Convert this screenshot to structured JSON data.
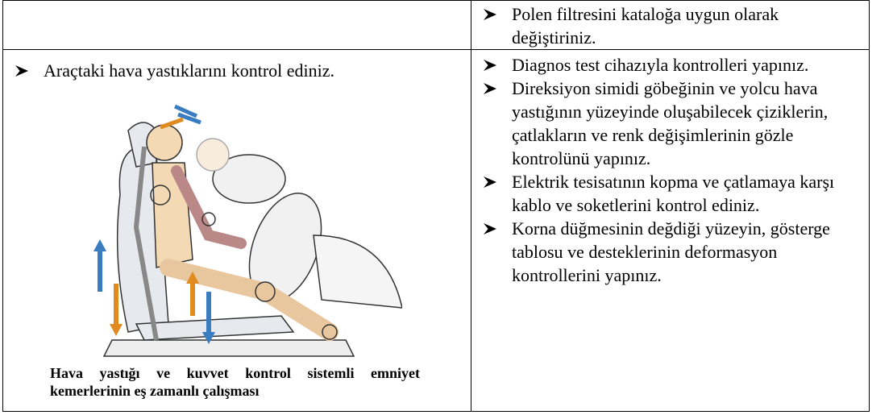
{
  "table": {
    "rows": [
      {
        "right": [
          "Polen filtresini kataloğa uygun olarak değiştiriniz."
        ]
      },
      {
        "left": {
          "text": "Araçtaki hava yastıklarını kontrol ediniz.",
          "caption": "Hava yastığı ve kuvvet kontrol sistemli emniyet kemerlerinin eş zamanlı çalışması"
        },
        "right": [
          "Diagnos test cihazıyla kontrolleri yapınız.",
          "Direksiyon simidi göbeğinin ve yolcu hava yastığının yüzeyinde oluşabilecek çiziklerin, çatlakların ve renk değişimlerinin gözle kontrolünü yapınız.",
          "Elektrik tesisatının kopma ve çatlamaya karşı kablo ve soketlerini kontrol ediniz.",
          "Korna düğmesinin değdiği yüzeyin, gösterge tablosu ve desteklerinin deformasyon kontrollerini yapınız."
        ]
      }
    ]
  }
}
